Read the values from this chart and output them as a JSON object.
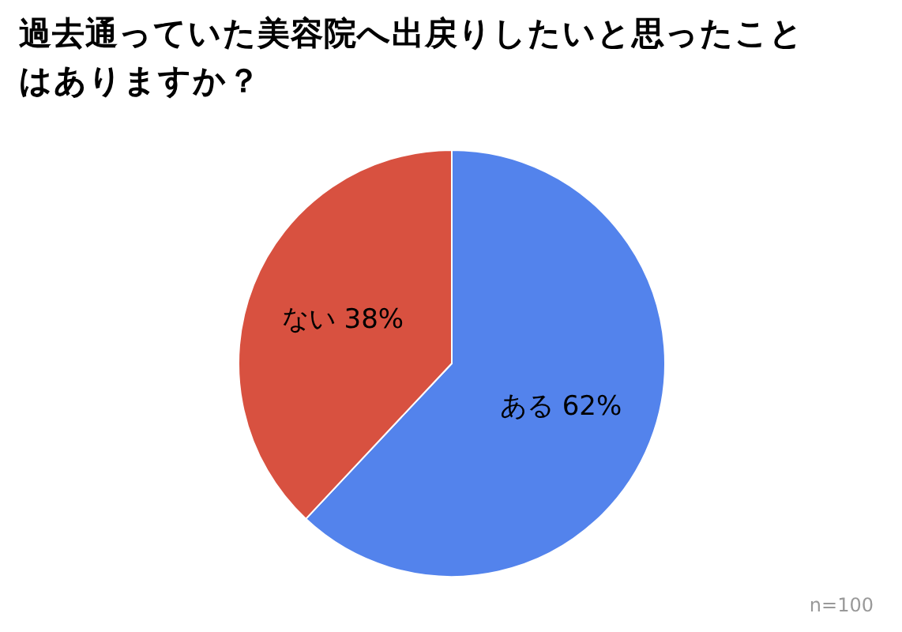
{
  "chart_data": {
    "type": "pie",
    "title": "過去通っていた美容院へ出戻りしたいと思ったことはありますか？",
    "categories": [
      "ある",
      "ない"
    ],
    "values": [
      62,
      38
    ],
    "colors": [
      "#5383ec",
      "#d85140"
    ],
    "value_labels": [
      "62%",
      "38%"
    ],
    "legend": false,
    "annotations": [
      "n=100"
    ]
  }
}
